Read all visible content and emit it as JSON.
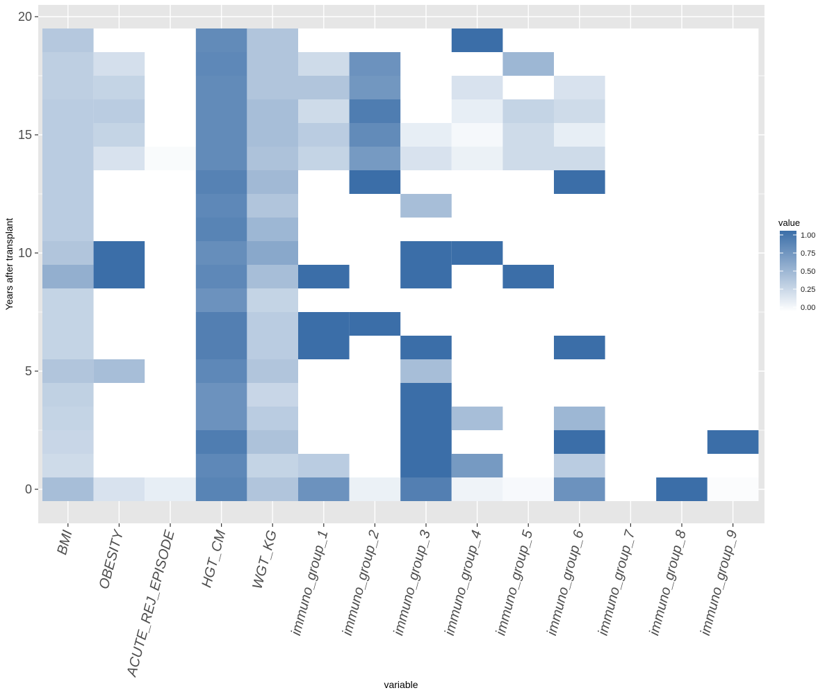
{
  "chart_data": {
    "type": "heatmap",
    "xlabel": "variable",
    "ylabel": "Years after transplant",
    "x_categories": [
      "BMI",
      "OBESITY",
      "ACUTE_REJ_EPISODE",
      "HGT_CM",
      "WGT_KG",
      "immuno_group_1",
      "immuno_group_2",
      "immuno_group_3",
      "immuno_group_4",
      "immuno_group_5",
      "immuno_group_6",
      "immuno_group_7",
      "immuno_group_8",
      "immuno_group_9"
    ],
    "y_values": [
      0,
      1,
      2,
      3,
      4,
      5,
      6,
      7,
      8,
      9,
      10,
      11,
      12,
      13,
      14,
      15,
      16,
      17,
      18,
      19
    ],
    "y_ticks": [
      0,
      5,
      10,
      15,
      20
    ],
    "ylim": [
      -0.5,
      20
    ],
    "grid": true,
    "legend": {
      "title": "value",
      "position": "right",
      "ticks": [
        "0.00",
        "0.25",
        "0.50",
        "0.75",
        "1.00"
      ],
      "low_color": "#ffffff",
      "high_color": "#3b6ea8"
    },
    "colors": {
      "panel_background": "#e6e6e6",
      "gridline": "#ffffff"
    },
    "cells": [
      [
        0,
        0,
        0.45
      ],
      [
        0,
        1,
        0.25
      ],
      [
        0,
        2,
        0.28
      ],
      [
        0,
        3,
        0.3
      ],
      [
        0,
        4,
        0.32
      ],
      [
        0,
        5,
        0.4
      ],
      [
        0,
        6,
        0.3
      ],
      [
        0,
        7,
        0.3
      ],
      [
        0,
        8,
        0.3
      ],
      [
        0,
        9,
        0.55
      ],
      [
        0,
        10,
        0.4
      ],
      [
        0,
        11,
        0.35
      ],
      [
        0,
        12,
        0.35
      ],
      [
        0,
        13,
        0.35
      ],
      [
        0,
        14,
        0.35
      ],
      [
        0,
        15,
        0.35
      ],
      [
        0,
        16,
        0.35
      ],
      [
        0,
        17,
        0.33
      ],
      [
        0,
        18,
        0.33
      ],
      [
        0,
        19,
        0.38
      ],
      [
        1,
        0,
        0.2
      ],
      [
        1,
        5,
        0.45
      ],
      [
        1,
        9,
        1.0
      ],
      [
        1,
        10,
        1.0
      ],
      [
        1,
        14,
        0.2
      ],
      [
        1,
        15,
        0.3
      ],
      [
        1,
        16,
        0.35
      ],
      [
        1,
        17,
        0.3
      ],
      [
        1,
        18,
        0.22
      ],
      [
        2,
        0,
        0.12
      ],
      [
        2,
        14,
        0.03
      ],
      [
        3,
        0,
        0.85
      ],
      [
        3,
        1,
        0.82
      ],
      [
        3,
        2,
        0.9
      ],
      [
        3,
        3,
        0.75
      ],
      [
        3,
        4,
        0.75
      ],
      [
        3,
        5,
        0.82
      ],
      [
        3,
        6,
        0.88
      ],
      [
        3,
        7,
        0.88
      ],
      [
        3,
        8,
        0.75
      ],
      [
        3,
        9,
        0.82
      ],
      [
        3,
        10,
        0.78
      ],
      [
        3,
        11,
        0.85
      ],
      [
        3,
        12,
        0.82
      ],
      [
        3,
        13,
        0.86
      ],
      [
        3,
        14,
        0.8
      ],
      [
        3,
        15,
        0.8
      ],
      [
        3,
        16,
        0.8
      ],
      [
        3,
        17,
        0.8
      ],
      [
        3,
        18,
        0.82
      ],
      [
        3,
        19,
        0.8
      ],
      [
        4,
        0,
        0.4
      ],
      [
        4,
        1,
        0.3
      ],
      [
        4,
        2,
        0.42
      ],
      [
        4,
        3,
        0.35
      ],
      [
        4,
        4,
        0.28
      ],
      [
        4,
        5,
        0.4
      ],
      [
        4,
        6,
        0.35
      ],
      [
        4,
        7,
        0.35
      ],
      [
        4,
        8,
        0.3
      ],
      [
        4,
        9,
        0.45
      ],
      [
        4,
        10,
        0.6
      ],
      [
        4,
        11,
        0.5
      ],
      [
        4,
        12,
        0.4
      ],
      [
        4,
        13,
        0.48
      ],
      [
        4,
        14,
        0.42
      ],
      [
        4,
        15,
        0.45
      ],
      [
        4,
        16,
        0.45
      ],
      [
        4,
        17,
        0.4
      ],
      [
        4,
        18,
        0.4
      ],
      [
        4,
        19,
        0.4
      ],
      [
        5,
        0,
        0.75
      ],
      [
        5,
        1,
        0.35
      ],
      [
        5,
        6,
        1.0
      ],
      [
        5,
        7,
        1.0
      ],
      [
        5,
        9,
        1.0
      ],
      [
        5,
        14,
        0.3
      ],
      [
        5,
        15,
        0.35
      ],
      [
        5,
        16,
        0.25
      ],
      [
        5,
        17,
        0.4
      ],
      [
        5,
        18,
        0.25
      ],
      [
        6,
        0,
        0.1
      ],
      [
        6,
        7,
        1.0
      ],
      [
        6,
        13,
        1.0
      ],
      [
        6,
        14,
        0.7
      ],
      [
        6,
        15,
        0.8
      ],
      [
        6,
        16,
        0.9
      ],
      [
        6,
        17,
        0.72
      ],
      [
        6,
        18,
        0.75
      ],
      [
        7,
        0,
        0.88
      ],
      [
        7,
        1,
        1.0
      ],
      [
        7,
        2,
        1.0
      ],
      [
        7,
        3,
        1.0
      ],
      [
        7,
        4,
        1.0
      ],
      [
        7,
        5,
        0.45
      ],
      [
        7,
        6,
        1.0
      ],
      [
        7,
        9,
        1.0
      ],
      [
        7,
        10,
        1.0
      ],
      [
        7,
        12,
        0.45
      ],
      [
        7,
        14,
        0.2
      ],
      [
        7,
        15,
        0.12
      ],
      [
        8,
        0,
        0.08
      ],
      [
        8,
        1,
        0.7
      ],
      [
        8,
        3,
        0.45
      ],
      [
        8,
        10,
        1.0
      ],
      [
        8,
        14,
        0.1
      ],
      [
        8,
        15,
        0.05
      ],
      [
        8,
        16,
        0.12
      ],
      [
        8,
        17,
        0.2
      ],
      [
        8,
        19,
        1.0
      ],
      [
        9,
        0,
        0.04
      ],
      [
        9,
        9,
        1.0
      ],
      [
        9,
        14,
        0.25
      ],
      [
        9,
        15,
        0.25
      ],
      [
        9,
        16,
        0.3
      ],
      [
        9,
        18,
        0.5
      ],
      [
        10,
        0,
        0.75
      ],
      [
        10,
        1,
        0.35
      ],
      [
        10,
        2,
        1.0
      ],
      [
        10,
        3,
        0.5
      ],
      [
        10,
        6,
        1.0
      ],
      [
        10,
        13,
        1.0
      ],
      [
        10,
        14,
        0.25
      ],
      [
        10,
        15,
        0.12
      ],
      [
        10,
        16,
        0.25
      ],
      [
        10,
        17,
        0.2
      ],
      [
        11,
        0,
        0.0
      ],
      [
        12,
        0,
        1.0
      ],
      [
        13,
        0,
        0.02
      ],
      [
        13,
        1,
        0.0
      ],
      [
        13,
        2,
        1.0
      ]
    ]
  }
}
